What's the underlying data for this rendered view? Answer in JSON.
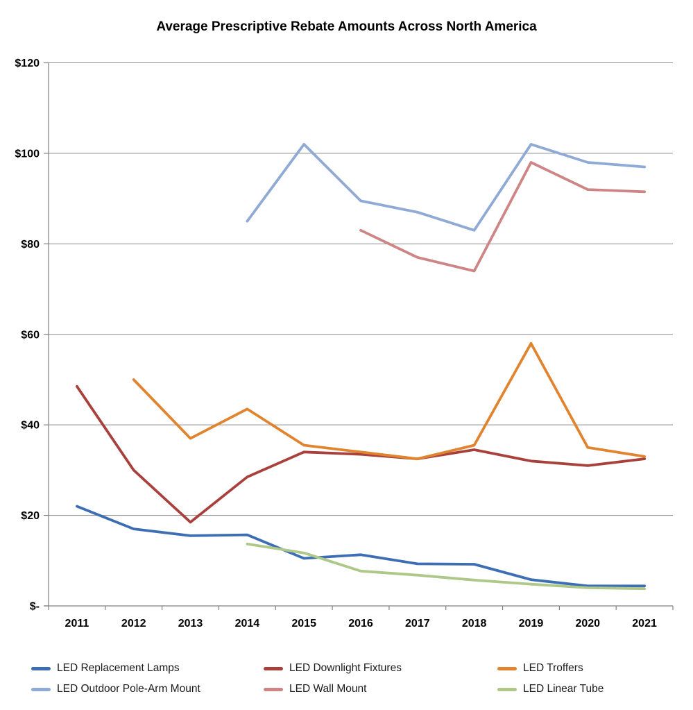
{
  "chart_data": {
    "type": "line",
    "title": "Average Prescriptive Rebate Amounts Across North America",
    "xlabel": "",
    "ylabel": "",
    "ylim": [
      0,
      120
    ],
    "grid": true,
    "legend_position": "bottom",
    "categories": [
      "2011",
      "2012",
      "2013",
      "2014",
      "2015",
      "2016",
      "2017",
      "2018",
      "2019",
      "2020",
      "2021"
    ],
    "y_ticks": [
      {
        "value": 0,
        "label": "$-"
      },
      {
        "value": 20,
        "label": "$20"
      },
      {
        "value": 40,
        "label": "$40"
      },
      {
        "value": 60,
        "label": "$60"
      },
      {
        "value": 80,
        "label": "$80"
      },
      {
        "value": 100,
        "label": "$100"
      },
      {
        "value": 120,
        "label": "$120"
      }
    ],
    "series": [
      {
        "name": "LED Replacement Lamps",
        "color": "#3D6EB4",
        "values": [
          22,
          17,
          15.5,
          15.7,
          10.5,
          11.3,
          9.3,
          9.2,
          5.8,
          4.4,
          4.4
        ]
      },
      {
        "name": "LED Downlight Fixtures",
        "color": "#A8413C",
        "values": [
          48.5,
          30,
          18.5,
          28.5,
          34,
          33.5,
          32.5,
          34.5,
          32,
          31,
          32.5
        ]
      },
      {
        "name": "LED Troffers",
        "color": "#E1842F",
        "values": [
          null,
          50,
          37,
          43.5,
          35.5,
          34,
          32.5,
          35.5,
          58,
          35,
          33
        ]
      },
      {
        "name": "LED Outdoor Pole-Arm Mount",
        "color": "#90AAD6",
        "values": [
          null,
          null,
          null,
          85,
          102,
          89.5,
          87,
          83,
          102,
          98,
          97
        ]
      },
      {
        "name": "LED Wall Mount",
        "color": "#CD8685",
        "values": [
          null,
          null,
          null,
          null,
          null,
          83,
          77,
          74,
          98,
          92,
          91.5
        ]
      },
      {
        "name": "LED Linear Tube",
        "color": "#ADC889",
        "values": [
          null,
          null,
          null,
          13.7,
          11.7,
          7.7,
          6.8,
          5.7,
          4.8,
          4,
          3.8
        ]
      }
    ]
  }
}
